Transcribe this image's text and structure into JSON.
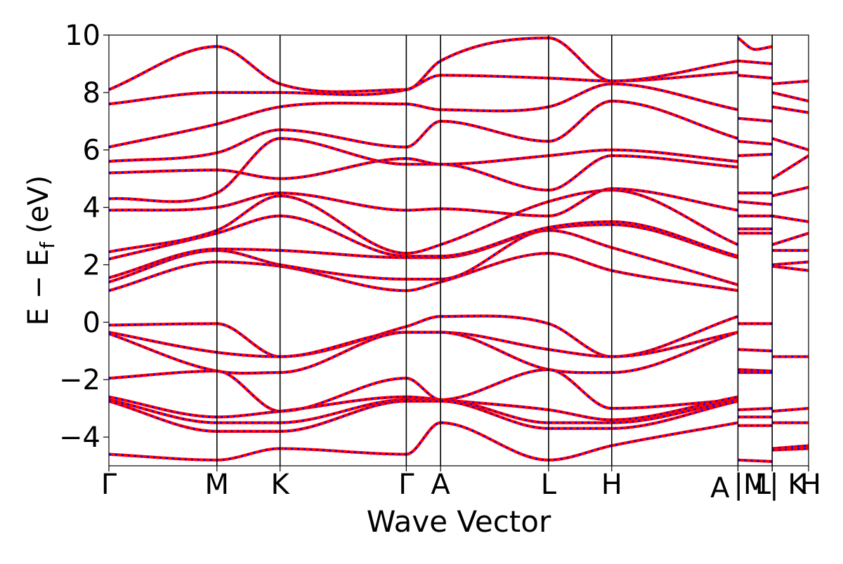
{
  "chart_data": {
    "type": "line",
    "title": "",
    "xlabel": "Wave Vector",
    "ylabel": "E − E",
    "ylabel_subscript": "f",
    "ylabel_unit": "(eV)",
    "ylim": [
      -5,
      10
    ],
    "yticks": [
      10,
      8,
      6,
      4,
      2,
      0,
      -2,
      -4
    ],
    "ytick_labels": [
      "10",
      "8",
      "6",
      "4",
      "2",
      "0",
      "−2",
      "−4"
    ],
    "xlim": [
      0,
      6.54
    ],
    "grid": false,
    "legend": "none",
    "segment_colors": {
      "primary": "#ff0000",
      "overlay": "#0000ff"
    },
    "high_symmetry_points": [
      {
        "label": "Γ",
        "x": 0.0
      },
      {
        "label": "M",
        "x": 1.01
      },
      {
        "label": "K",
        "x": 1.6
      },
      {
        "label": "Γ",
        "x": 2.78
      },
      {
        "label": "A",
        "x": 3.1
      },
      {
        "label": "L",
        "x": 4.11
      },
      {
        "label": "H",
        "x": 4.7
      },
      {
        "label": "A",
        "x": 5.88
      },
      {
        "label": "|M",
        "x": 5.88
      },
      {
        "label": "L",
        "x": 6.2
      },
      {
        "label": "| K",
        "x": 6.2
      },
      {
        "label": "H",
        "x": 6.54
      }
    ],
    "series": [
      {
        "segment": "main",
        "x": [
          0.0,
          1.01,
          1.6,
          2.78,
          3.1,
          4.11,
          4.7,
          5.88
        ],
        "values": [
          -0.1,
          -0.05,
          -1.2,
          -0.15,
          0.2,
          -0.05,
          -1.2,
          0.2
        ]
      },
      {
        "segment": "main",
        "x": [
          0.0,
          1.01,
          1.6,
          2.78,
          3.1,
          4.11,
          4.7,
          5.88
        ],
        "values": [
          -0.35,
          -1.05,
          -1.2,
          -0.35,
          -0.35,
          -0.95,
          -1.2,
          -0.35
        ]
      },
      {
        "segment": "main",
        "x": [
          0.0,
          1.01,
          1.6,
          2.78,
          3.1,
          4.11,
          4.7,
          5.88
        ],
        "values": [
          -0.4,
          -1.7,
          -1.75,
          -0.35,
          -0.35,
          -1.65,
          -1.75,
          -0.35
        ]
      },
      {
        "segment": "main",
        "x": [
          0.0,
          1.01,
          1.6,
          2.78,
          3.1,
          4.11,
          4.7,
          5.88
        ],
        "values": [
          -1.95,
          -1.7,
          -3.1,
          -1.95,
          -2.7,
          -1.65,
          -3.0,
          -2.7
        ]
      },
      {
        "segment": "main",
        "x": [
          0.0,
          1.01,
          1.6,
          2.78,
          3.1,
          4.11,
          4.7,
          5.88
        ],
        "values": [
          -2.6,
          -3.3,
          -3.1,
          -2.6,
          -2.7,
          -3.05,
          -3.4,
          -2.6
        ]
      },
      {
        "segment": "main",
        "x": [
          0.0,
          1.01,
          1.6,
          2.78,
          3.1,
          4.11,
          4.7,
          5.88
        ],
        "values": [
          -2.7,
          -3.5,
          -3.5,
          -2.7,
          -2.7,
          -3.5,
          -3.5,
          -2.7
        ]
      },
      {
        "segment": "main",
        "x": [
          0.0,
          1.01,
          1.6,
          2.78,
          3.1,
          4.11,
          4.7,
          5.88
        ],
        "values": [
          -2.75,
          -3.8,
          -3.8,
          -2.75,
          -2.75,
          -3.7,
          -3.7,
          -2.75
        ]
      },
      {
        "segment": "main",
        "x": [
          0.0,
          1.01,
          1.6,
          2.78,
          3.1,
          4.11,
          4.7,
          5.88
        ],
        "values": [
          -4.6,
          -4.8,
          -4.4,
          -4.6,
          -3.5,
          -4.8,
          -4.3,
          -3.5
        ]
      },
      {
        "segment": "main",
        "x": [
          0.0,
          1.01,
          1.6,
          2.78,
          3.1,
          4.11,
          4.7,
          5.88
        ],
        "values": [
          1.1,
          2.1,
          1.95,
          1.1,
          1.4,
          2.4,
          1.8,
          1.1
        ]
      },
      {
        "segment": "main",
        "x": [
          0.0,
          1.01,
          1.6,
          2.78,
          3.1,
          4.11,
          4.7,
          5.88
        ],
        "values": [
          1.4,
          2.5,
          2.0,
          1.5,
          1.5,
          3.2,
          2.6,
          1.3
        ]
      },
      {
        "segment": "main",
        "x": [
          0.0,
          1.01,
          1.6,
          2.78,
          3.1,
          4.11,
          4.7,
          5.88
        ],
        "values": [
          1.55,
          2.55,
          2.5,
          2.25,
          2.25,
          3.25,
          3.4,
          2.25
        ]
      },
      {
        "segment": "main",
        "x": [
          0.0,
          1.01,
          1.6,
          2.78,
          3.1,
          4.11,
          4.7,
          5.88
        ],
        "values": [
          2.2,
          3.1,
          3.7,
          2.3,
          2.3,
          3.3,
          3.5,
          2.3
        ]
      },
      {
        "segment": "main",
        "x": [
          0.0,
          1.01,
          1.6,
          2.78,
          3.1,
          4.11,
          4.7,
          5.88
        ],
        "values": [
          2.45,
          3.2,
          4.4,
          2.4,
          2.7,
          4.2,
          4.6,
          2.7
        ]
      },
      {
        "segment": "main",
        "x": [
          0.0,
          1.01,
          1.6,
          2.78,
          3.1,
          4.11,
          4.7,
          5.88
        ],
        "values": [
          3.9,
          4.0,
          4.5,
          3.9,
          3.95,
          3.7,
          4.65,
          3.9
        ]
      },
      {
        "segment": "main",
        "x": [
          0.0,
          1.01,
          1.6,
          2.78,
          3.1,
          4.11,
          4.7,
          5.88
        ],
        "values": [
          4.3,
          4.5,
          6.4,
          5.5,
          5.5,
          4.6,
          5.8,
          5.4
        ]
      },
      {
        "segment": "main",
        "x": [
          0.0,
          1.01,
          1.6,
          2.78,
          3.1,
          4.11,
          4.7,
          5.88
        ],
        "values": [
          5.2,
          5.3,
          5.0,
          5.7,
          5.5,
          5.8,
          6.0,
          5.6
        ]
      },
      {
        "segment": "main",
        "x": [
          0.0,
          1.01,
          1.6,
          2.78,
          3.1,
          4.11,
          4.7,
          5.88
        ],
        "values": [
          5.6,
          5.9,
          6.7,
          6.1,
          7.0,
          6.3,
          7.7,
          6.4
        ]
      },
      {
        "segment": "main",
        "x": [
          0.0,
          1.01,
          1.6,
          2.78,
          3.1,
          4.11,
          4.7,
          5.88
        ],
        "values": [
          6.1,
          6.9,
          7.5,
          7.6,
          7.4,
          7.5,
          8.3,
          7.4
        ]
      },
      {
        "segment": "main",
        "x": [
          0.0,
          1.01,
          1.6,
          2.78,
          3.1,
          4.11,
          4.7,
          5.88
        ],
        "values": [
          7.6,
          8.0,
          8.0,
          8.1,
          8.6,
          8.5,
          8.4,
          8.7
        ]
      },
      {
        "segment": "main",
        "x": [
          0.0,
          1.01,
          1.6,
          2.78,
          3.1,
          4.11,
          4.7,
          5.88
        ],
        "values": [
          8.1,
          9.6,
          8.3,
          8.1,
          9.1,
          9.9,
          8.4,
          9.1
        ]
      },
      {
        "segment": "side1",
        "x": [
          5.88,
          6.2
        ],
        "values": [
          -0.05,
          -0.05
        ]
      },
      {
        "segment": "side1",
        "x": [
          5.88,
          6.2
        ],
        "values": [
          -0.95,
          -1.0
        ]
      },
      {
        "segment": "side1",
        "x": [
          5.88,
          6.2
        ],
        "values": [
          -1.65,
          -1.7
        ]
      },
      {
        "segment": "side1",
        "x": [
          5.88,
          6.2
        ],
        "values": [
          -1.75,
          -1.75
        ]
      },
      {
        "segment": "side1",
        "x": [
          5.88,
          6.2
        ],
        "values": [
          -3.05,
          -3.0
        ]
      },
      {
        "segment": "side1",
        "x": [
          5.88,
          6.2
        ],
        "values": [
          -3.3,
          -3.3
        ]
      },
      {
        "segment": "side1",
        "x": [
          5.88,
          6.2
        ],
        "values": [
          -3.6,
          -3.6
        ]
      },
      {
        "segment": "side1",
        "x": [
          5.88,
          6.2
        ],
        "values": [
          -4.8,
          -4.85
        ]
      },
      {
        "segment": "side1",
        "x": [
          5.88,
          6.2
        ],
        "values": [
          3.1,
          3.1
        ]
      },
      {
        "segment": "side1",
        "x": [
          5.88,
          6.2
        ],
        "values": [
          3.25,
          3.25
        ]
      },
      {
        "segment": "side1",
        "x": [
          5.88,
          6.2
        ],
        "values": [
          3.7,
          3.7
        ]
      },
      {
        "segment": "side1",
        "x": [
          5.88,
          6.2
        ],
        "values": [
          4.2,
          4.1
        ]
      },
      {
        "segment": "side1",
        "x": [
          5.88,
          6.2
        ],
        "values": [
          4.5,
          4.5
        ]
      },
      {
        "segment": "side1",
        "x": [
          5.88,
          6.2
        ],
        "values": [
          5.8,
          5.85
        ]
      },
      {
        "segment": "side1",
        "x": [
          5.88,
          6.2
        ],
        "values": [
          6.3,
          6.2
        ]
      },
      {
        "segment": "side1",
        "x": [
          5.88,
          6.2
        ],
        "values": [
          7.1,
          7.0
        ]
      },
      {
        "segment": "side1",
        "x": [
          5.88,
          6.2
        ],
        "values": [
          8.6,
          8.5
        ]
      },
      {
        "segment": "side1",
        "x": [
          5.88,
          6.2
        ],
        "values": [
          9.1,
          9.0
        ]
      },
      {
        "segment": "side1",
        "x": [
          5.88,
          6.04,
          6.2
        ],
        "values": [
          9.9,
          9.5,
          9.6
        ]
      },
      {
        "segment": "side2",
        "x": [
          6.2,
          6.54
        ],
        "values": [
          -1.2,
          -1.2
        ]
      },
      {
        "segment": "side2",
        "x": [
          6.2,
          6.54
        ],
        "values": [
          -3.1,
          -3.0
        ]
      },
      {
        "segment": "side2",
        "x": [
          6.2,
          6.54
        ],
        "values": [
          -3.5,
          -3.5
        ]
      },
      {
        "segment": "side2",
        "x": [
          6.2,
          6.54
        ],
        "values": [
          -4.4,
          -4.3
        ]
      },
      {
        "segment": "side2",
        "x": [
          6.2,
          6.54
        ],
        "values": [
          -4.45,
          -4.4
        ]
      },
      {
        "segment": "side2",
        "x": [
          6.2,
          6.54
        ],
        "values": [
          1.95,
          1.8
        ]
      },
      {
        "segment": "side2",
        "x": [
          6.2,
          6.54
        ],
        "values": [
          2.0,
          2.1
        ]
      },
      {
        "segment": "side2",
        "x": [
          6.2,
          6.54
        ],
        "values": [
          2.5,
          2.5
        ]
      },
      {
        "segment": "side2",
        "x": [
          6.2,
          6.54
        ],
        "values": [
          2.7,
          3.1
        ]
      },
      {
        "segment": "side2",
        "x": [
          6.2,
          6.54
        ],
        "values": [
          3.7,
          3.5
        ]
      },
      {
        "segment": "side2",
        "x": [
          6.2,
          6.54
        ],
        "values": [
          4.4,
          4.7
        ]
      },
      {
        "segment": "side2",
        "x": [
          6.2,
          6.54
        ],
        "values": [
          5.0,
          5.8
        ]
      },
      {
        "segment": "side2",
        "x": [
          6.2,
          6.54
        ],
        "values": [
          6.4,
          6.0
        ]
      },
      {
        "segment": "side2",
        "x": [
          6.2,
          6.54
        ],
        "values": [
          7.5,
          7.3
        ]
      },
      {
        "segment": "side2",
        "x": [
          6.2,
          6.54
        ],
        "values": [
          8.0,
          7.7
        ]
      },
      {
        "segment": "side2",
        "x": [
          6.2,
          6.54
        ],
        "values": [
          8.3,
          8.4
        ]
      }
    ]
  }
}
